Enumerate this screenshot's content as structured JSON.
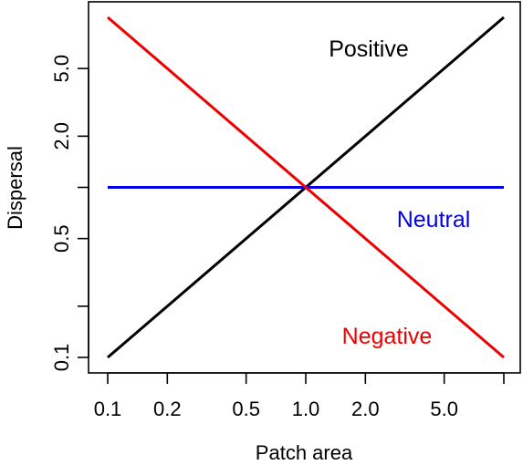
{
  "chart_data": {
    "type": "line",
    "title": "",
    "xlabel": "Patch area",
    "ylabel": "Dispersal",
    "x_scale": "log",
    "y_scale": "log",
    "xlim": [
      0.1,
      10
    ],
    "ylim": [
      0.1,
      10
    ],
    "xticks": [
      0.1,
      0.2,
      0.5,
      1.0,
      2.0,
      5.0,
      10
    ],
    "xtick_labels": [
      "0.1",
      "0.2",
      "0.5",
      "1.0",
      "2.0",
      "5.0",
      ""
    ],
    "yticks": [
      0.1,
      0.2,
      0.5,
      1.0,
      2.0,
      5.0
    ],
    "ytick_labels": [
      "0.1",
      "",
      "0.5",
      "",
      "2.0",
      "5.0"
    ],
    "grid": false,
    "legend": "none",
    "series": [
      {
        "name": "Positive",
        "color": "#000000",
        "x": [
          0.1,
          10
        ],
        "y": [
          0.1,
          10
        ]
      },
      {
        "name": "Neutral",
        "color": "#0000ee",
        "x": [
          0.1,
          10
        ],
        "y": [
          1.0,
          1.0
        ]
      },
      {
        "name": "Negative",
        "color": "#ee0000",
        "x": [
          0.1,
          10
        ],
        "y": [
          10,
          0.1
        ]
      }
    ]
  }
}
